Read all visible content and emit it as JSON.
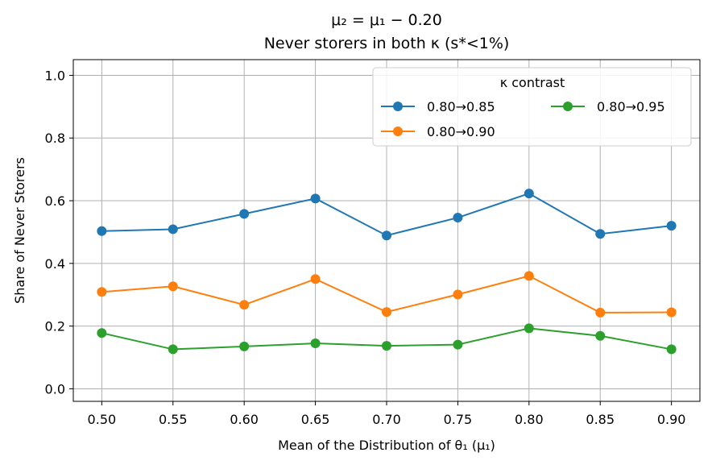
{
  "chart_data": {
    "type": "line",
    "title_line1": "μ₂ = μ₁ − 0.20",
    "title_line2": "Never storers in both κ (s*<1%)",
    "xlabel": "Mean of the Distribution of θ₁ (μ₁)",
    "ylabel": "Share of Never Storers",
    "x": [
      0.5,
      0.55,
      0.6,
      0.65,
      0.7,
      0.75,
      0.8,
      0.85,
      0.9
    ],
    "x_tick_labels": [
      "0.50",
      "0.55",
      "0.60",
      "0.65",
      "0.70",
      "0.75",
      "0.80",
      "0.85",
      "0.90"
    ],
    "y_ticks": [
      0.0,
      0.2,
      0.4,
      0.6,
      0.8,
      1.0
    ],
    "y_tick_labels": [
      "0.0",
      "0.2",
      "0.4",
      "0.6",
      "0.8",
      "1.0"
    ],
    "xlim": [
      0.48,
      0.92
    ],
    "ylim": [
      -0.04,
      1.05
    ],
    "grid": true,
    "legend": {
      "title": "κ contrast",
      "placement": "top-right"
    },
    "series": [
      {
        "name": "0.80→0.85",
        "color": "#1f77b4",
        "values": [
          0.503,
          0.509,
          0.558,
          0.607,
          0.489,
          0.546,
          0.623,
          0.494,
          0.52
        ]
      },
      {
        "name": "0.80→0.90",
        "color": "#ff7f0e",
        "values": [
          0.309,
          0.327,
          0.268,
          0.35,
          0.245,
          0.301,
          0.36,
          0.243,
          0.244
        ]
      },
      {
        "name": "0.80→0.95",
        "color": "#2ca02c",
        "values": [
          0.178,
          0.126,
          0.135,
          0.145,
          0.137,
          0.141,
          0.193,
          0.169,
          0.126
        ]
      }
    ]
  }
}
